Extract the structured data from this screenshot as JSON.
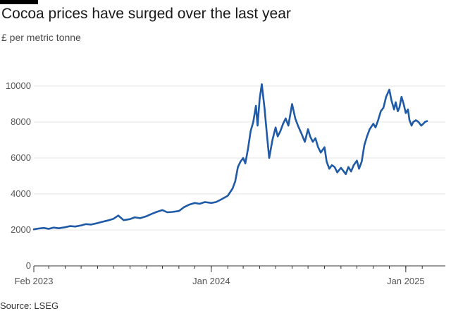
{
  "title": "Cocoa prices have surged over the last year",
  "subtitle": "£ per metric tonne",
  "source": "Source: LSEG",
  "colors": {
    "line": "#1f5aa6",
    "grid": "#e6e6e6",
    "axis": "#333333"
  },
  "chart_data": {
    "type": "line",
    "title": "Cocoa prices have surged over the last year",
    "ylabel": "£ per metric tonne",
    "xlabel": "",
    "ylim": [
      0,
      10000
    ],
    "yticks": [
      0,
      2000,
      4000,
      6000,
      8000,
      10000
    ],
    "xticks": [
      {
        "date": "2023-02-01",
        "label": "Feb 2023"
      },
      {
        "date": "2024-01-01",
        "label": "Jan 2024"
      },
      {
        "date": "2025-01-01",
        "label": "Jan 2025"
      }
    ],
    "xlim": [
      "2023-02-01",
      "2025-02-10"
    ],
    "grid": true,
    "legend": "none",
    "series": [
      {
        "x": [
          "2023-02-01",
          "2023-02-10",
          "2023-02-20",
          "2023-03-01",
          "2023-03-10",
          "2023-03-20",
          "2023-04-01",
          "2023-04-10",
          "2023-04-20",
          "2023-05-01",
          "2023-05-10",
          "2023-05-20",
          "2023-06-01",
          "2023-06-10",
          "2023-06-20",
          "2023-07-01",
          "2023-07-10",
          "2023-07-20",
          "2023-08-01",
          "2023-08-10",
          "2023-08-20",
          "2023-09-01",
          "2023-09-10",
          "2023-09-20",
          "2023-10-01",
          "2023-10-10",
          "2023-10-20",
          "2023-11-01",
          "2023-11-10",
          "2023-11-20",
          "2023-12-01",
          "2023-12-10",
          "2023-12-20",
          "2024-01-01",
          "2024-01-10",
          "2024-01-20",
          "2024-02-01",
          "2024-02-10",
          "2024-02-15",
          "2024-02-20",
          "2024-02-25",
          "2024-03-01",
          "2024-03-05",
          "2024-03-10",
          "2024-03-15",
          "2024-03-20",
          "2024-03-25",
          "2024-03-28",
          "2024-04-01",
          "2024-04-05",
          "2024-04-10",
          "2024-04-15",
          "2024-04-19",
          "2024-04-25",
          "2024-05-01",
          "2024-05-05",
          "2024-05-10",
          "2024-05-15",
          "2024-05-20",
          "2024-05-25",
          "2024-06-01",
          "2024-06-07",
          "2024-06-12",
          "2024-06-18",
          "2024-06-25",
          "2024-07-01",
          "2024-07-05",
          "2024-07-10",
          "2024-07-15",
          "2024-07-20",
          "2024-07-25",
          "2024-08-01",
          "2024-08-05",
          "2024-08-10",
          "2024-08-15",
          "2024-08-20",
          "2024-08-25",
          "2024-09-01",
          "2024-09-05",
          "2024-09-10",
          "2024-09-15",
          "2024-09-20",
          "2024-09-25",
          "2024-10-01",
          "2024-10-05",
          "2024-10-10",
          "2024-10-15",
          "2024-10-20",
          "2024-10-25",
          "2024-11-01",
          "2024-11-05",
          "2024-11-10",
          "2024-11-15",
          "2024-11-20",
          "2024-11-25",
          "2024-12-01",
          "2024-12-05",
          "2024-12-10",
          "2024-12-13",
          "2024-12-17",
          "2024-12-20",
          "2024-12-24",
          "2024-12-28",
          "2025-01-01",
          "2025-01-05",
          "2025-01-08",
          "2025-01-12",
          "2025-01-15",
          "2025-01-20",
          "2025-01-25",
          "2025-01-30",
          "2025-02-03",
          "2025-02-06",
          "2025-02-10"
        ],
        "values": [
          2030,
          2080,
          2110,
          2060,
          2130,
          2090,
          2150,
          2210,
          2190,
          2250,
          2320,
          2300,
          2380,
          2450,
          2520,
          2620,
          2800,
          2540,
          2600,
          2700,
          2650,
          2760,
          2880,
          3000,
          3100,
          2980,
          3000,
          3050,
          3250,
          3400,
          3500,
          3450,
          3550,
          3500,
          3550,
          3700,
          3900,
          4300,
          4700,
          5500,
          5800,
          6000,
          5700,
          6500,
          7500,
          8000,
          8900,
          7800,
          9300,
          10100,
          8800,
          7200,
          6000,
          7000,
          7700,
          7200,
          7500,
          7900,
          8200,
          7800,
          9000,
          8200,
          7800,
          7400,
          6900,
          7600,
          7200,
          6900,
          7100,
          6600,
          6300,
          6600,
          5800,
          5400,
          5600,
          5500,
          5200,
          5450,
          5300,
          5100,
          5500,
          5250,
          5600,
          5850,
          5400,
          5800,
          6700,
          7200,
          7600,
          7900,
          7700,
          8100,
          8600,
          8800,
          9400,
          9800,
          9200,
          8700,
          9100,
          8600,
          8800,
          9400,
          9000,
          8500,
          8700,
          8100,
          7800,
          8000,
          8100,
          8000,
          7800,
          7900,
          8000,
          8050
        ]
      }
    ]
  }
}
